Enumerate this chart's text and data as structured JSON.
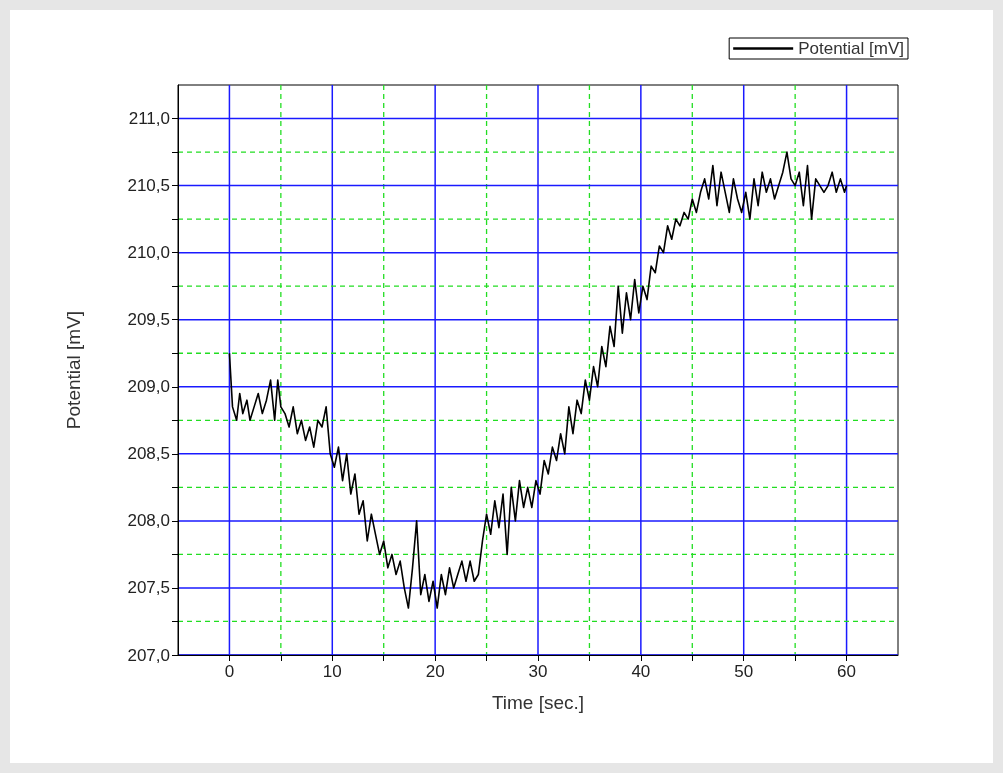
{
  "chart_data": {
    "type": "line",
    "xlabel": "Time [sec.]",
    "ylabel": "Potential [mV]",
    "xlim": [
      -5,
      65
    ],
    "ylim": [
      207,
      211.25
    ],
    "xticks": [
      0,
      {
        "value": 5,
        "label": null
      },
      10,
      {
        "value": 15,
        "label": null
      },
      20,
      {
        "value": 25,
        "label": null
      },
      30,
      {
        "value": 35,
        "label": null
      },
      40,
      {
        "value": 45,
        "label": null
      },
      50,
      {
        "value": 55,
        "label": null
      },
      60
    ],
    "yticks": [
      {
        "value": 207,
        "label": "207,0"
      },
      {
        "value": 207.25,
        "label": null
      },
      {
        "value": 207.5,
        "label": "207,5"
      },
      {
        "value": 207.75,
        "label": null
      },
      {
        "value": 208,
        "label": "208,0"
      },
      {
        "value": 208.25,
        "label": null
      },
      {
        "value": 208.5,
        "label": "208,5"
      },
      {
        "value": 208.75,
        "label": null
      },
      {
        "value": 209,
        "label": "209,0"
      },
      {
        "value": 209.25,
        "label": null
      },
      {
        "value": 209.5,
        "label": "209,5"
      },
      {
        "value": 209.75,
        "label": null
      },
      {
        "value": 210,
        "label": "210,0"
      },
      {
        "value": 210.25,
        "label": null
      },
      {
        "value": 210.5,
        "label": "210,5"
      },
      {
        "value": 210.75,
        "label": null
      },
      {
        "value": 211,
        "label": "211,0"
      }
    ],
    "grid": true,
    "legend": "top right",
    "marker": "none",
    "line_style": "solid",
    "series": [
      {
        "name": "Potential [mV]",
        "color": "#000000",
        "x": [
          0,
          0.3,
          0.7,
          1,
          1.3,
          1.7,
          2,
          2.4,
          2.8,
          3.2,
          3.6,
          4,
          4.4,
          4.7,
          5,
          5.4,
          5.8,
          6.2,
          6.6,
          7,
          7.4,
          7.8,
          8.2,
          8.6,
          9,
          9.4,
          9.8,
          10.2,
          10.6,
          11,
          11.4,
          11.8,
          12.2,
          12.6,
          13,
          13.4,
          13.8,
          14.2,
          14.6,
          15,
          15.4,
          15.8,
          16.2,
          16.6,
          17,
          17.4,
          17.8,
          18.2,
          18.6,
          19,
          19.4,
          19.8,
          20.2,
          20.6,
          21,
          21.4,
          21.8,
          22.2,
          22.6,
          23,
          23.4,
          23.8,
          24.2,
          24.6,
          25,
          25.4,
          25.8,
          26.2,
          26.6,
          27,
          27.4,
          27.8,
          28.2,
          28.6,
          29,
          29.4,
          29.8,
          30.2,
          30.6,
          31,
          31.4,
          31.8,
          32.2,
          32.6,
          33,
          33.4,
          33.8,
          34.2,
          34.6,
          35,
          35.4,
          35.8,
          36.2,
          36.6,
          37,
          37.4,
          37.8,
          38.2,
          38.6,
          39,
          39.4,
          39.8,
          40.2,
          40.6,
          41,
          41.4,
          41.8,
          42.2,
          42.6,
          43,
          43.4,
          43.8,
          44.2,
          44.6,
          45,
          45.4,
          45.8,
          46.2,
          46.6,
          47,
          47.4,
          47.8,
          48.2,
          48.6,
          49,
          49.4,
          49.8,
          50.2,
          50.6,
          51,
          51.4,
          51.8,
          52.2,
          52.6,
          53,
          53.4,
          53.8,
          54.2,
          54.6,
          55,
          55.4,
          55.8,
          56.2,
          56.6,
          57,
          57.4,
          57.8,
          58.2,
          58.6,
          59,
          59.4,
          59.8,
          60
        ],
        "values": [
          209.25,
          208.85,
          208.75,
          208.95,
          208.8,
          208.9,
          208.75,
          208.85,
          208.95,
          208.8,
          208.9,
          209.05,
          208.75,
          209.05,
          208.85,
          208.8,
          208.7,
          208.85,
          208.65,
          208.75,
          208.6,
          208.7,
          208.55,
          208.75,
          208.7,
          208.85,
          208.5,
          208.4,
          208.55,
          208.3,
          208.5,
          208.2,
          208.35,
          208.05,
          208.15,
          207.85,
          208.05,
          207.9,
          207.75,
          207.85,
          207.65,
          207.75,
          207.6,
          207.7,
          207.5,
          207.35,
          207.65,
          208.0,
          207.45,
          207.6,
          207.4,
          207.55,
          207.35,
          207.6,
          207.45,
          207.65,
          207.5,
          207.6,
          207.7,
          207.55,
          207.7,
          207.55,
          207.6,
          207.85,
          208.05,
          207.9,
          208.15,
          207.95,
          208.2,
          207.75,
          208.25,
          208.0,
          208.3,
          208.1,
          208.25,
          208.1,
          208.3,
          208.2,
          208.45,
          208.35,
          208.55,
          208.45,
          208.65,
          208.5,
          208.85,
          208.65,
          208.9,
          208.8,
          209.05,
          208.9,
          209.15,
          209.0,
          209.3,
          209.15,
          209.45,
          209.3,
          209.75,
          209.4,
          209.7,
          209.5,
          209.8,
          209.55,
          209.75,
          209.65,
          209.9,
          209.85,
          210.05,
          210.0,
          210.2,
          210.1,
          210.25,
          210.2,
          210.3,
          210.25,
          210.4,
          210.3,
          210.45,
          210.55,
          210.4,
          210.65,
          210.35,
          210.6,
          210.45,
          210.3,
          210.55,
          210.4,
          210.3,
          210.45,
          210.25,
          210.55,
          210.35,
          210.6,
          210.45,
          210.55,
          210.4,
          210.5,
          210.6,
          210.75,
          210.55,
          210.5,
          210.6,
          210.35,
          210.65,
          210.25,
          210.55,
          210.5,
          210.45,
          210.5,
          210.6,
          210.45,
          210.55,
          210.45,
          210.5
        ]
      }
    ]
  }
}
